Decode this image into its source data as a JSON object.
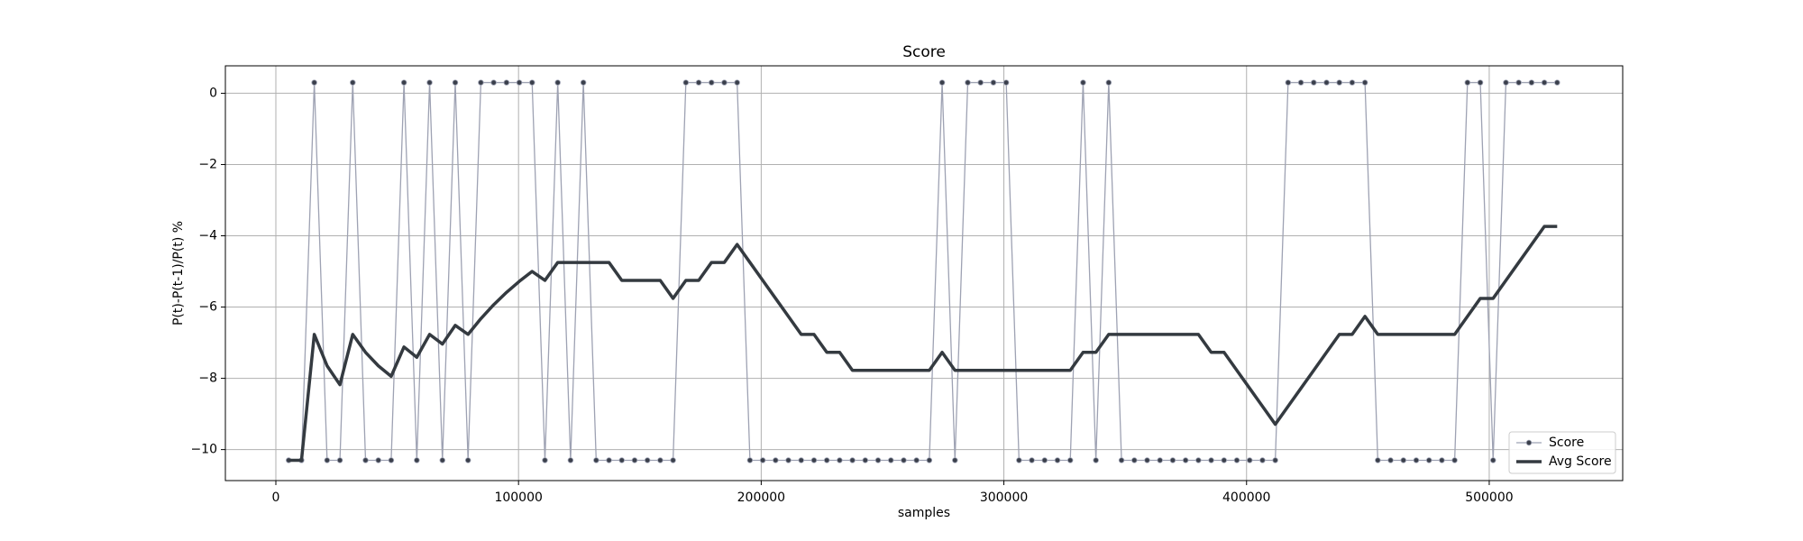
{
  "chart_data": {
    "type": "line",
    "title": "Score",
    "x_label": "samples",
    "y_label": "P(t)-P(t-1)/P(t) %",
    "x": [
      5280,
      10560,
      15840,
      21120,
      26400,
      31680,
      36960,
      42240,
      47520,
      52800,
      58080,
      63360,
      68640,
      73920,
      79200,
      84480,
      89760,
      95040,
      100320,
      105600,
      110880,
      116160,
      121440,
      126720,
      132000,
      137280,
      142560,
      147840,
      153120,
      158400,
      163680,
      168960,
      174240,
      179520,
      184800,
      190080,
      195360,
      200640,
      205920,
      211200,
      216480,
      221760,
      227040,
      232320,
      237600,
      242880,
      248160,
      253440,
      258720,
      264000,
      269280,
      274560,
      279840,
      285120,
      290400,
      295680,
      300960,
      306240,
      311520,
      316800,
      322080,
      327360,
      332640,
      337920,
      343200,
      348480,
      353760,
      359040,
      364320,
      369600,
      374880,
      380160,
      385440,
      390720,
      396000,
      401280,
      406560,
      411840,
      417120,
      422400,
      427680,
      432960,
      438240,
      443520,
      448800,
      454080,
      459360,
      464640,
      469920,
      475200,
      480480,
      485760,
      491040,
      496320,
      501600,
      506880,
      512160,
      517440,
      522720,
      528000
    ],
    "series": [
      {
        "name": "Score",
        "color": "#9ea2b3",
        "marker_color": "#3a3f4b",
        "line_width": 1.3,
        "markers": true,
        "values": [
          -10.3,
          -10.3,
          0.3,
          -10.3,
          -10.3,
          0.3,
          -10.3,
          -10.3,
          -10.3,
          0.3,
          -10.3,
          0.3,
          -10.3,
          0.3,
          -10.3,
          0.3,
          0.3,
          0.3,
          0.3,
          0.3,
          -10.3,
          0.3,
          -10.3,
          0.3,
          -10.3,
          -10.3,
          -10.3,
          -10.3,
          -10.3,
          -10.3,
          -10.3,
          0.3,
          0.3,
          0.3,
          0.3,
          0.3,
          -10.3,
          -10.3,
          -10.3,
          -10.3,
          -10.3,
          -10.3,
          -10.3,
          -10.3,
          -10.3,
          -10.3,
          -10.3,
          -10.3,
          -10.3,
          -10.3,
          -10.3,
          0.3,
          -10.3,
          0.3,
          0.3,
          0.3,
          0.3,
          -10.3,
          -10.3,
          -10.3,
          -10.3,
          -10.3,
          0.3,
          -10.3,
          0.3,
          -10.3,
          -10.3,
          -10.3,
          -10.3,
          -10.3,
          -10.3,
          -10.3,
          -10.3,
          -10.3,
          -10.3,
          -10.3,
          -10.3,
          -10.3,
          0.3,
          0.3,
          0.3,
          0.3,
          0.3,
          0.3,
          0.3,
          -10.3,
          -10.3,
          -10.3,
          -10.3,
          -10.3,
          -10.3,
          -10.3,
          0.3,
          0.3,
          -10.3,
          0.3,
          0.3,
          0.3,
          0.3,
          0.3
        ]
      },
      {
        "name": "Avg Score",
        "color": "#343a40",
        "line_width": 3.5,
        "markers": false,
        "values": [
          -10.3,
          -10.3,
          -6.767,
          -7.65,
          -8.18,
          -6.767,
          -7.271,
          -7.65,
          -7.944,
          -7.12,
          -7.409,
          -6.767,
          -7.038,
          -6.514,
          -6.767,
          -6.325,
          -5.935,
          -5.589,
          -5.279,
          -5.0,
          -5.252,
          -4.748,
          -4.748,
          -4.748,
          -4.748,
          -4.748,
          -5.252,
          -5.252,
          -5.252,
          -5.252,
          -5.757,
          -5.252,
          -5.252,
          -4.748,
          -4.748,
          -4.243,
          -4.748,
          -5.252,
          -5.757,
          -6.262,
          -6.767,
          -6.767,
          -7.271,
          -7.271,
          -7.776,
          -7.776,
          -7.776,
          -7.776,
          -7.776,
          -7.776,
          -7.776,
          -7.271,
          -7.776,
          -7.776,
          -7.776,
          -7.776,
          -7.776,
          -7.776,
          -7.776,
          -7.776,
          -7.776,
          -7.776,
          -7.271,
          -7.271,
          -6.767,
          -6.767,
          -6.767,
          -6.767,
          -6.767,
          -6.767,
          -6.767,
          -6.767,
          -7.271,
          -7.271,
          -7.776,
          -8.281,
          -8.786,
          -9.29,
          -8.786,
          -8.281,
          -7.776,
          -7.271,
          -6.767,
          -6.767,
          -6.262,
          -6.767,
          -6.767,
          -6.767,
          -6.767,
          -6.767,
          -6.767,
          -6.767,
          -6.262,
          -5.757,
          -5.757,
          -5.252,
          -4.748,
          -4.243,
          -3.738,
          -3.738
        ]
      }
    ],
    "xlim": [
      -20800,
      555000
    ],
    "ylim": [
      -10.87,
      0.77
    ],
    "xticks": [
      0,
      100000,
      200000,
      300000,
      400000,
      500000
    ],
    "yticks": [
      {
        "value": -10,
        "label": "−10"
      },
      {
        "value": -8,
        "label": "−8"
      },
      {
        "value": -6,
        "label": "−6"
      },
      {
        "value": -4,
        "label": "−4"
      },
      {
        "value": -2,
        "label": "−2"
      },
      0
    ],
    "grid": true,
    "legend": "lower right"
  }
}
